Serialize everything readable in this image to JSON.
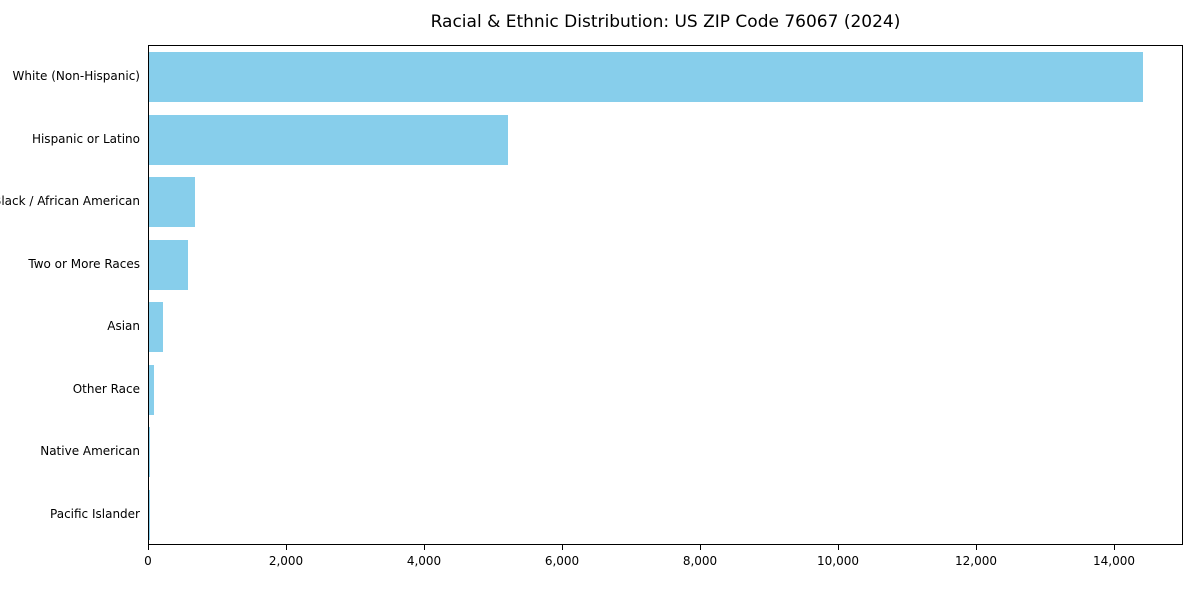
{
  "chart_data": {
    "type": "bar",
    "orientation": "horizontal",
    "title": "Racial & Ethnic Distribution: US ZIP Code 76067 (2024)",
    "categories": [
      "White (Non-Hispanic)",
      "Hispanic or Latino",
      "Black / African American",
      "Two or More Races",
      "Asian",
      "Other Race",
      "Native American",
      "Pacific Islander"
    ],
    "values": [
      14400,
      5200,
      670,
      570,
      200,
      70,
      15,
      5
    ],
    "xlabel": "",
    "ylabel": "",
    "xlim": [
      0,
      15000
    ],
    "xticks": [
      0,
      2000,
      4000,
      6000,
      8000,
      10000,
      12000,
      14000
    ],
    "xtick_labels": [
      "0",
      "2,000",
      "4,000",
      "6,000",
      "8,000",
      "10,000",
      "12,000",
      "14,000"
    ],
    "bar_color": "#87CEEB",
    "grid": false,
    "legend": null
  }
}
